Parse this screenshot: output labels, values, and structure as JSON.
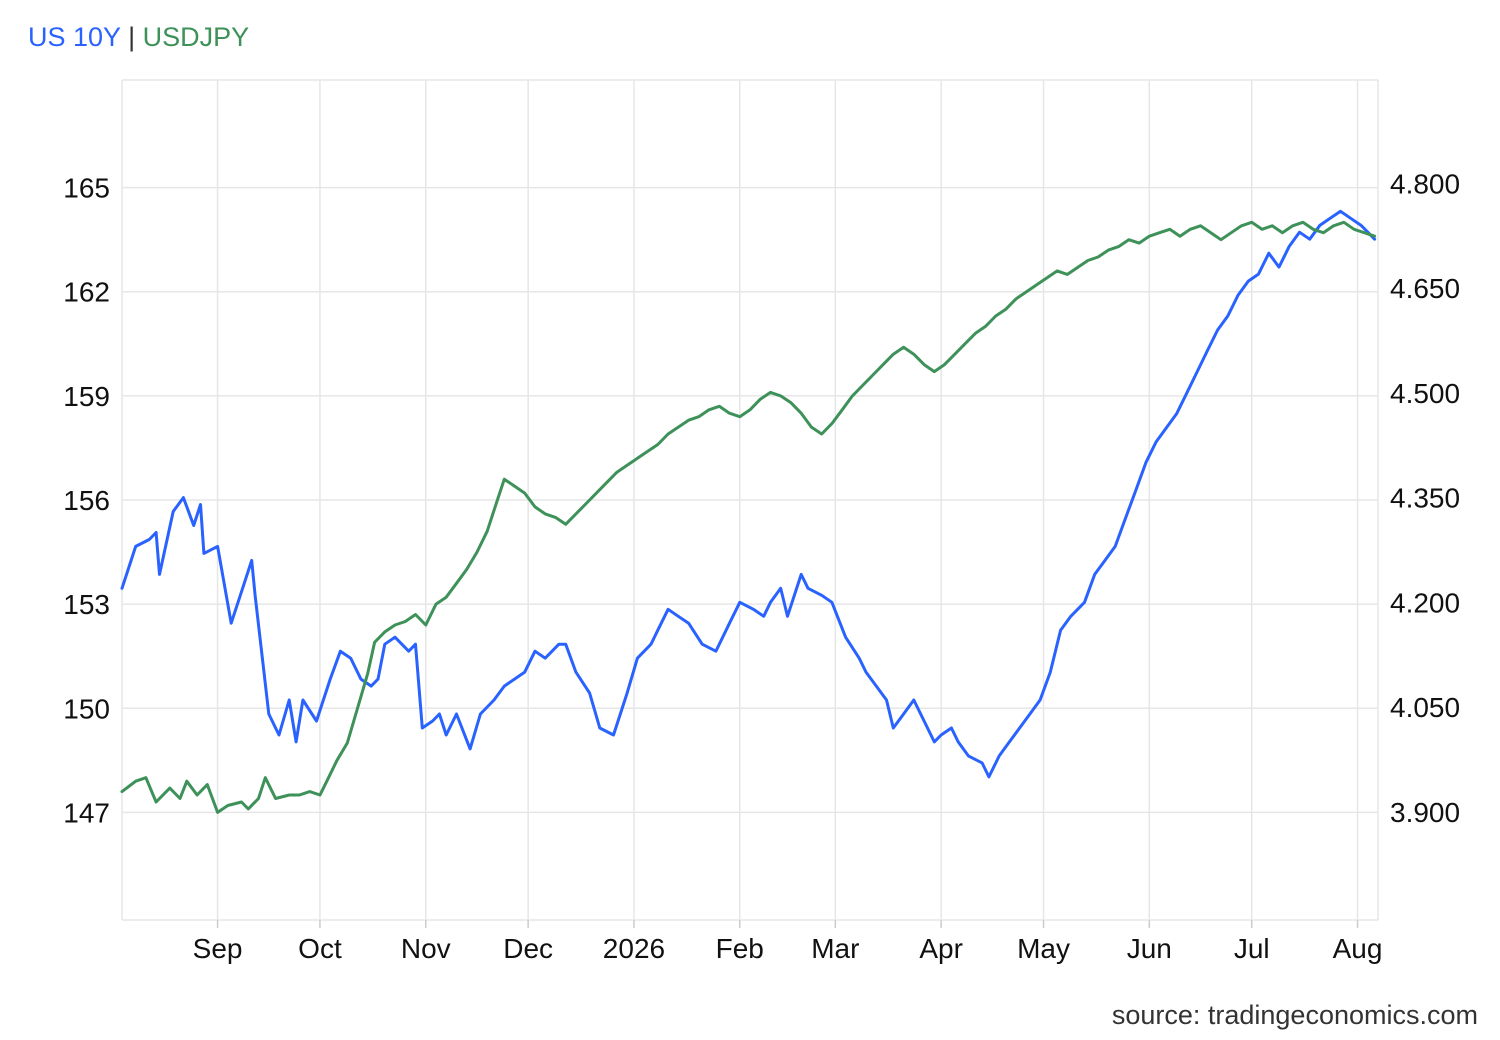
{
  "legend": {
    "series1": "US 10Y",
    "separator": "|",
    "series2": "USDJPY"
  },
  "source": "source: tradingeconomics.com",
  "colors": {
    "us10y": "#2962ff",
    "usdjpy": "#3d9159",
    "grid": "#e6e6e6"
  },
  "chart_data": {
    "type": "line",
    "x_labels": [
      "Sep",
      "Oct",
      "Nov",
      "Dec",
      "2026",
      "Feb",
      "Mar",
      "Apr",
      "May",
      "Jun",
      "Jul",
      "Aug"
    ],
    "x_range": [
      "2025-08-04",
      "2026-08-07"
    ],
    "y_left": {
      "series": "USDJPY",
      "ticks": [
        147,
        150,
        153,
        156,
        159,
        162,
        165
      ],
      "tick_labels": [
        "147",
        "150",
        "153",
        "156",
        "159",
        "162",
        "165"
      ],
      "range": [
        143.9,
        168.1
      ]
    },
    "y_right": {
      "series": "US 10Y",
      "ticks": [
        3.9,
        4.05,
        4.2,
        4.35,
        4.5,
        4.65,
        4.8
      ],
      "tick_labels": [
        "3.900",
        "4.050",
        "4.200",
        "4.350",
        "4.500",
        "4.650",
        "4.800"
      ],
      "range": [
        3.745,
        4.948
      ]
    },
    "grid": true,
    "series": [
      {
        "name": "US 10Y",
        "axis": "right",
        "points": [
          [
            "2025-08-04",
            4.22
          ],
          [
            "2025-08-08",
            4.28
          ],
          [
            "2025-08-12",
            4.29
          ],
          [
            "2025-08-14",
            4.3
          ],
          [
            "2025-08-15",
            4.24
          ],
          [
            "2025-08-19",
            4.33
          ],
          [
            "2025-08-22",
            4.35
          ],
          [
            "2025-08-25",
            4.31
          ],
          [
            "2025-08-27",
            4.34
          ],
          [
            "2025-08-28",
            4.27
          ],
          [
            "2025-09-01",
            4.28
          ],
          [
            "2025-09-05",
            4.17
          ],
          [
            "2025-09-09",
            4.23
          ],
          [
            "2025-09-11",
            4.26
          ],
          [
            "2025-09-12",
            4.21
          ],
          [
            "2025-09-16",
            4.04
          ],
          [
            "2025-09-19",
            4.01
          ],
          [
            "2025-09-22",
            4.06
          ],
          [
            "2025-09-24",
            4.0
          ],
          [
            "2025-09-26",
            4.06
          ],
          [
            "2025-09-30",
            4.03
          ],
          [
            "2025-10-04",
            4.09
          ],
          [
            "2025-10-07",
            4.13
          ],
          [
            "2025-10-10",
            4.12
          ],
          [
            "2025-10-13",
            4.09
          ],
          [
            "2025-10-16",
            4.08
          ],
          [
            "2025-10-18",
            4.09
          ],
          [
            "2025-10-20",
            4.14
          ],
          [
            "2025-10-23",
            4.15
          ],
          [
            "2025-10-27",
            4.13
          ],
          [
            "2025-10-29",
            4.14
          ],
          [
            "2025-10-31",
            4.02
          ],
          [
            "2025-11-03",
            4.03
          ],
          [
            "2025-11-05",
            4.04
          ],
          [
            "2025-11-07",
            4.01
          ],
          [
            "2025-11-10",
            4.04
          ],
          [
            "2025-11-14",
            3.99
          ],
          [
            "2025-11-17",
            4.04
          ],
          [
            "2025-11-21",
            4.06
          ],
          [
            "2025-11-24",
            4.08
          ],
          [
            "2025-11-27",
            4.09
          ],
          [
            "2025-11-30",
            4.1
          ],
          [
            "2025-12-03",
            4.13
          ],
          [
            "2025-12-06",
            4.12
          ],
          [
            "2025-12-10",
            4.14
          ],
          [
            "2025-12-12",
            4.14
          ],
          [
            "2025-12-15",
            4.1
          ],
          [
            "2025-12-19",
            4.07
          ],
          [
            "2025-12-22",
            4.02
          ],
          [
            "2025-12-26",
            4.01
          ],
          [
            "2025-12-30",
            4.07
          ],
          [
            "2026-01-02",
            4.12
          ],
          [
            "2026-01-06",
            4.14
          ],
          [
            "2026-01-08",
            4.16
          ],
          [
            "2026-01-11",
            4.19
          ],
          [
            "2026-01-14",
            4.18
          ],
          [
            "2026-01-17",
            4.17
          ],
          [
            "2026-01-21",
            4.14
          ],
          [
            "2026-01-25",
            4.13
          ],
          [
            "2026-01-29",
            4.17
          ],
          [
            "2026-02-01",
            4.2
          ],
          [
            "2026-02-05",
            4.19
          ],
          [
            "2026-02-08",
            4.18
          ],
          [
            "2026-02-10",
            4.2
          ],
          [
            "2026-02-13",
            4.22
          ],
          [
            "2026-02-15",
            4.18
          ],
          [
            "2026-02-19",
            4.24
          ],
          [
            "2026-02-21",
            4.22
          ],
          [
            "2026-02-25",
            4.21
          ],
          [
            "2026-02-28",
            4.2
          ],
          [
            "2026-03-04",
            4.15
          ],
          [
            "2026-03-08",
            4.12
          ],
          [
            "2026-03-10",
            4.1
          ],
          [
            "2026-03-13",
            4.08
          ],
          [
            "2026-03-16",
            4.06
          ],
          [
            "2026-03-18",
            4.02
          ],
          [
            "2026-03-21",
            4.04
          ],
          [
            "2026-03-24",
            4.06
          ],
          [
            "2026-03-27",
            4.03
          ],
          [
            "2026-03-30",
            4.0
          ],
          [
            "2026-04-01",
            4.01
          ],
          [
            "2026-04-04",
            4.02
          ],
          [
            "2026-04-06",
            4.0
          ],
          [
            "2026-04-09",
            3.98
          ],
          [
            "2026-04-13",
            3.97
          ],
          [
            "2026-04-15",
            3.95
          ],
          [
            "2026-04-18",
            3.98
          ],
          [
            "2026-04-21",
            4.0
          ],
          [
            "2026-04-24",
            4.02
          ],
          [
            "2026-04-27",
            4.04
          ],
          [
            "2026-04-30",
            4.06
          ],
          [
            "2026-05-03",
            4.1
          ],
          [
            "2026-05-06",
            4.16
          ],
          [
            "2026-05-09",
            4.18
          ],
          [
            "2026-05-13",
            4.2
          ],
          [
            "2026-05-16",
            4.24
          ],
          [
            "2026-05-19",
            4.26
          ],
          [
            "2026-05-22",
            4.28
          ],
          [
            "2026-05-25",
            4.32
          ],
          [
            "2026-05-28",
            4.36
          ],
          [
            "2026-05-31",
            4.4
          ],
          [
            "2026-06-03",
            4.43
          ],
          [
            "2026-06-06",
            4.45
          ],
          [
            "2026-06-09",
            4.47
          ],
          [
            "2026-06-12",
            4.5
          ],
          [
            "2026-06-15",
            4.53
          ],
          [
            "2026-06-18",
            4.56
          ],
          [
            "2026-06-21",
            4.59
          ],
          [
            "2026-06-24",
            4.61
          ],
          [
            "2026-06-27",
            4.64
          ],
          [
            "2026-06-30",
            4.66
          ],
          [
            "2026-07-03",
            4.67
          ],
          [
            "2026-07-06",
            4.7
          ],
          [
            "2026-07-09",
            4.68
          ],
          [
            "2026-07-12",
            4.71
          ],
          [
            "2026-07-15",
            4.73
          ],
          [
            "2026-07-18",
            4.72
          ],
          [
            "2026-07-21",
            4.74
          ],
          [
            "2026-07-24",
            4.75
          ],
          [
            "2026-07-27",
            4.76
          ],
          [
            "2026-07-30",
            4.75
          ],
          [
            "2026-08-02",
            4.74
          ],
          [
            "2026-08-04",
            4.73
          ],
          [
            "2026-08-06",
            4.72
          ]
        ]
      },
      {
        "name": "USDJPY",
        "axis": "left",
        "points": [
          [
            "2025-08-04",
            147.6
          ],
          [
            "2025-08-08",
            147.9
          ],
          [
            "2025-08-11",
            148.0
          ],
          [
            "2025-08-14",
            147.3
          ],
          [
            "2025-08-18",
            147.7
          ],
          [
            "2025-08-21",
            147.4
          ],
          [
            "2025-08-23",
            147.9
          ],
          [
            "2025-08-26",
            147.5
          ],
          [
            "2025-08-29",
            147.8
          ],
          [
            "2025-09-01",
            147.0
          ],
          [
            "2025-09-04",
            147.2
          ],
          [
            "2025-09-08",
            147.3
          ],
          [
            "2025-09-10",
            147.1
          ],
          [
            "2025-09-13",
            147.4
          ],
          [
            "2025-09-15",
            148.0
          ],
          [
            "2025-09-18",
            147.4
          ],
          [
            "2025-09-22",
            147.5
          ],
          [
            "2025-09-25",
            147.5
          ],
          [
            "2025-09-28",
            147.6
          ],
          [
            "2025-10-01",
            147.5
          ],
          [
            "2025-10-03",
            147.9
          ],
          [
            "2025-10-06",
            148.5
          ],
          [
            "2025-10-09",
            149.0
          ],
          [
            "2025-10-12",
            150.0
          ],
          [
            "2025-10-15",
            151.0
          ],
          [
            "2025-10-17",
            151.9
          ],
          [
            "2025-10-20",
            152.2
          ],
          [
            "2025-10-23",
            152.4
          ],
          [
            "2025-10-26",
            152.5
          ],
          [
            "2025-10-29",
            152.7
          ],
          [
            "2025-11-01",
            152.4
          ],
          [
            "2025-11-04",
            153.0
          ],
          [
            "2025-11-07",
            153.2
          ],
          [
            "2025-11-10",
            153.6
          ],
          [
            "2025-11-13",
            154.0
          ],
          [
            "2025-11-16",
            154.5
          ],
          [
            "2025-11-19",
            155.1
          ],
          [
            "2025-11-22",
            156.0
          ],
          [
            "2025-11-24",
            156.6
          ],
          [
            "2025-11-27",
            156.4
          ],
          [
            "2025-11-30",
            156.2
          ],
          [
            "2025-12-03",
            155.8
          ],
          [
            "2025-12-06",
            155.6
          ],
          [
            "2025-12-09",
            155.5
          ],
          [
            "2025-12-12",
            155.3
          ],
          [
            "2025-12-15",
            155.6
          ],
          [
            "2025-12-18",
            155.9
          ],
          [
            "2025-12-21",
            156.2
          ],
          [
            "2025-12-24",
            156.5
          ],
          [
            "2025-12-27",
            156.8
          ],
          [
            "2025-12-30",
            157.0
          ],
          [
            "2026-01-02",
            157.2
          ],
          [
            "2026-01-05",
            157.4
          ],
          [
            "2026-01-08",
            157.6
          ],
          [
            "2026-01-11",
            157.9
          ],
          [
            "2026-01-14",
            158.1
          ],
          [
            "2026-01-17",
            158.3
          ],
          [
            "2026-01-20",
            158.4
          ],
          [
            "2026-01-23",
            158.6
          ],
          [
            "2026-01-26",
            158.7
          ],
          [
            "2026-01-29",
            158.5
          ],
          [
            "2026-02-01",
            158.4
          ],
          [
            "2026-02-04",
            158.6
          ],
          [
            "2026-02-07",
            158.9
          ],
          [
            "2026-02-10",
            159.1
          ],
          [
            "2026-02-13",
            159.0
          ],
          [
            "2026-02-16",
            158.8
          ],
          [
            "2026-02-19",
            158.5
          ],
          [
            "2026-02-22",
            158.1
          ],
          [
            "2026-02-25",
            157.9
          ],
          [
            "2026-02-28",
            158.2
          ],
          [
            "2026-03-03",
            158.6
          ],
          [
            "2026-03-06",
            159.0
          ],
          [
            "2026-03-09",
            159.3
          ],
          [
            "2026-03-12",
            159.6
          ],
          [
            "2026-03-15",
            159.9
          ],
          [
            "2026-03-18",
            160.2
          ],
          [
            "2026-03-21",
            160.4
          ],
          [
            "2026-03-24",
            160.2
          ],
          [
            "2026-03-27",
            159.9
          ],
          [
            "2026-03-30",
            159.7
          ],
          [
            "2026-04-02",
            159.9
          ],
          [
            "2026-04-05",
            160.2
          ],
          [
            "2026-04-08",
            160.5
          ],
          [
            "2026-04-11",
            160.8
          ],
          [
            "2026-04-14",
            161.0
          ],
          [
            "2026-04-17",
            161.3
          ],
          [
            "2026-04-20",
            161.5
          ],
          [
            "2026-04-23",
            161.8
          ],
          [
            "2026-04-26",
            162.0
          ],
          [
            "2026-04-29",
            162.2
          ],
          [
            "2026-05-02",
            162.4
          ],
          [
            "2026-05-05",
            162.6
          ],
          [
            "2026-05-08",
            162.5
          ],
          [
            "2026-05-11",
            162.7
          ],
          [
            "2026-05-14",
            162.9
          ],
          [
            "2026-05-17",
            163.0
          ],
          [
            "2026-05-20",
            163.2
          ],
          [
            "2026-05-23",
            163.3
          ],
          [
            "2026-05-26",
            163.5
          ],
          [
            "2026-05-29",
            163.4
          ],
          [
            "2026-06-01",
            163.6
          ],
          [
            "2026-06-04",
            163.7
          ],
          [
            "2026-06-07",
            163.8
          ],
          [
            "2026-06-10",
            163.6
          ],
          [
            "2026-06-13",
            163.8
          ],
          [
            "2026-06-16",
            163.9
          ],
          [
            "2026-06-19",
            163.7
          ],
          [
            "2026-06-22",
            163.5
          ],
          [
            "2026-06-25",
            163.7
          ],
          [
            "2026-06-28",
            163.9
          ],
          [
            "2026-07-01",
            164.0
          ],
          [
            "2026-07-04",
            163.8
          ],
          [
            "2026-07-07",
            163.9
          ],
          [
            "2026-07-10",
            163.7
          ],
          [
            "2026-07-13",
            163.9
          ],
          [
            "2026-07-16",
            164.0
          ],
          [
            "2026-07-19",
            163.8
          ],
          [
            "2026-07-22",
            163.7
          ],
          [
            "2026-07-25",
            163.9
          ],
          [
            "2026-07-28",
            164.0
          ],
          [
            "2026-07-31",
            163.8
          ],
          [
            "2026-08-03",
            163.7
          ],
          [
            "2026-08-06",
            163.6
          ]
        ]
      }
    ]
  }
}
